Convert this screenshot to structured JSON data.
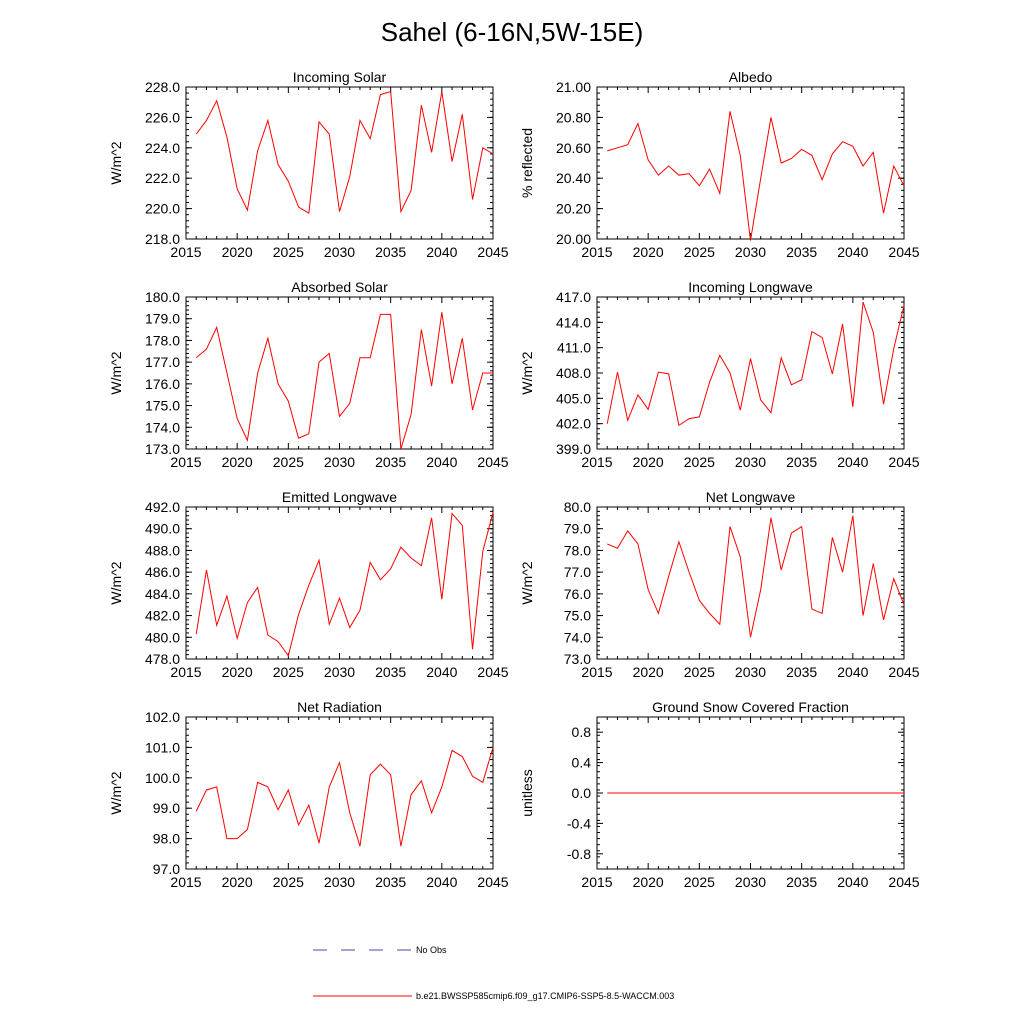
{
  "figure_title": "Sahel (6-16N,5W-15E)",
  "chart_data": [
    {
      "type": "line",
      "title": "Incoming Solar",
      "ylabel": "W/m^2",
      "xlim": [
        2015,
        2045
      ],
      "ylim": [
        218,
        228
      ],
      "xticks": [
        2015,
        2020,
        2025,
        2030,
        2035,
        2040,
        2045
      ],
      "yticks": [
        218.0,
        220.0,
        222.0,
        224.0,
        226.0,
        228.0
      ],
      "ytick_labels": [
        "218.0",
        "220.0",
        "222.0",
        "224.0",
        "226.0",
        "228.0"
      ],
      "x": [
        2016,
        2017,
        2018,
        2019,
        2020,
        2021,
        2022,
        2023,
        2024,
        2025,
        2026,
        2027,
        2028,
        2029,
        2030,
        2031,
        2032,
        2033,
        2034,
        2035,
        2036,
        2037,
        2038,
        2039,
        2040,
        2041,
        2042,
        2043,
        2044,
        2045
      ],
      "values": [
        224.9,
        225.8,
        227.1,
        224.7,
        221.3,
        219.9,
        223.8,
        225.8,
        222.9,
        221.8,
        220.1,
        219.7,
        225.7,
        224.9,
        219.8,
        222.1,
        225.8,
        224.6,
        227.5,
        227.7,
        219.8,
        221.2,
        226.8,
        223.7,
        227.7,
        223.1,
        226.2,
        220.6,
        224.0,
        223.6
      ]
    },
    {
      "type": "line",
      "title": "Albedo",
      "ylabel": "% reflected",
      "xlim": [
        2015,
        2045
      ],
      "ylim": [
        20.0,
        21.0
      ],
      "xticks": [
        2015,
        2020,
        2025,
        2030,
        2035,
        2040,
        2045
      ],
      "yticks": [
        20.0,
        20.2,
        20.4,
        20.6,
        20.8,
        21.0
      ],
      "ytick_labels": [
        "20.00",
        "20.20",
        "20.40",
        "20.60",
        "20.80",
        "21.00"
      ],
      "x": [
        2016,
        2017,
        2018,
        2019,
        2020,
        2021,
        2022,
        2023,
        2024,
        2025,
        2026,
        2027,
        2028,
        2029,
        2030,
        2031,
        2032,
        2033,
        2034,
        2035,
        2036,
        2037,
        2038,
        2039,
        2040,
        2041,
        2042,
        2043,
        2044,
        2045
      ],
      "values": [
        20.58,
        20.6,
        20.62,
        20.76,
        20.52,
        20.42,
        20.48,
        20.42,
        20.43,
        20.35,
        20.46,
        20.3,
        20.84,
        20.55,
        19.99,
        20.4,
        20.8,
        20.5,
        20.53,
        20.59,
        20.55,
        20.39,
        20.56,
        20.64,
        20.61,
        20.48,
        20.57,
        20.17,
        20.48,
        20.35
      ]
    },
    {
      "type": "line",
      "title": "Absorbed Solar",
      "ylabel": "W/m^2",
      "xlim": [
        2015,
        2045
      ],
      "ylim": [
        173,
        180
      ],
      "xticks": [
        2015,
        2020,
        2025,
        2030,
        2035,
        2040,
        2045
      ],
      "yticks": [
        173.0,
        174.0,
        175.0,
        176.0,
        177.0,
        178.0,
        179.0,
        180.0
      ],
      "ytick_labels": [
        "173.0",
        "174.0",
        "175.0",
        "176.0",
        "177.0",
        "178.0",
        "179.0",
        "180.0"
      ],
      "x": [
        2016,
        2017,
        2018,
        2019,
        2020,
        2021,
        2022,
        2023,
        2024,
        2025,
        2026,
        2027,
        2028,
        2029,
        2030,
        2031,
        2032,
        2033,
        2034,
        2035,
        2036,
        2037,
        2038,
        2039,
        2040,
        2041,
        2042,
        2043,
        2044,
        2045
      ],
      "values": [
        177.2,
        177.6,
        178.6,
        176.5,
        174.4,
        173.4,
        176.5,
        178.1,
        176.0,
        175.2,
        173.5,
        173.7,
        177.0,
        177.4,
        174.5,
        175.1,
        177.2,
        177.2,
        179.2,
        179.2,
        173.0,
        174.6,
        178.5,
        175.9,
        179.3,
        176.0,
        178.1,
        174.8,
        176.5,
        176.5
      ]
    },
    {
      "type": "line",
      "title": "Incoming Longwave",
      "ylabel": "W/m^2",
      "xlim": [
        2015,
        2045
      ],
      "ylim": [
        399,
        417
      ],
      "xticks": [
        2015,
        2020,
        2025,
        2030,
        2035,
        2040,
        2045
      ],
      "yticks": [
        399.0,
        402.0,
        405.0,
        408.0,
        411.0,
        414.0,
        417.0
      ],
      "ytick_labels": [
        "399.0",
        "402.0",
        "405.0",
        "408.0",
        "411.0",
        "414.0",
        "417.0"
      ],
      "x": [
        2016,
        2017,
        2018,
        2019,
        2020,
        2021,
        2022,
        2023,
        2024,
        2025,
        2026,
        2027,
        2028,
        2029,
        2030,
        2031,
        2032,
        2033,
        2034,
        2035,
        2036,
        2037,
        2038,
        2039,
        2040,
        2041,
        2042,
        2043,
        2044,
        2045
      ],
      "values": [
        402.0,
        408.1,
        402.4,
        405.4,
        403.7,
        408.1,
        407.9,
        401.8,
        402.6,
        402.8,
        406.9,
        410.1,
        408.0,
        403.6,
        409.7,
        404.8,
        403.3,
        409.8,
        406.6,
        407.2,
        412.9,
        412.2,
        407.9,
        413.8,
        404.0,
        416.4,
        412.8,
        404.3,
        410.9,
        416.0
      ]
    },
    {
      "type": "line",
      "title": "Emitted Longwave",
      "ylabel": "W/m^2",
      "xlim": [
        2015,
        2045
      ],
      "ylim": [
        478,
        492
      ],
      "xticks": [
        2015,
        2020,
        2025,
        2030,
        2035,
        2040,
        2045
      ],
      "yticks": [
        478.0,
        480.0,
        482.0,
        484.0,
        486.0,
        488.0,
        490.0,
        492.0
      ],
      "ytick_labels": [
        "478.0",
        "480.0",
        "482.0",
        "484.0",
        "486.0",
        "488.0",
        "490.0",
        "492.0"
      ],
      "x": [
        2016,
        2017,
        2018,
        2019,
        2020,
        2021,
        2022,
        2023,
        2024,
        2025,
        2026,
        2027,
        2028,
        2029,
        2030,
        2031,
        2032,
        2033,
        2034,
        2035,
        2036,
        2037,
        2038,
        2039,
        2040,
        2041,
        2042,
        2043,
        2044,
        2045
      ],
      "values": [
        480.3,
        486.2,
        481.1,
        483.8,
        479.9,
        483.2,
        484.6,
        480.2,
        479.6,
        478.3,
        482.1,
        484.8,
        487.1,
        481.2,
        483.6,
        480.9,
        482.5,
        486.9,
        485.3,
        486.3,
        488.3,
        487.3,
        486.6,
        491.0,
        483.5,
        491.4,
        490.3,
        478.9,
        487.9,
        491.5
      ]
    },
    {
      "type": "line",
      "title": "Net Longwave",
      "ylabel": "W/m^2",
      "xlim": [
        2015,
        2045
      ],
      "ylim": [
        73,
        80
      ],
      "xticks": [
        2015,
        2020,
        2025,
        2030,
        2035,
        2040,
        2045
      ],
      "yticks": [
        73.0,
        74.0,
        75.0,
        76.0,
        77.0,
        78.0,
        79.0,
        80.0
      ],
      "ytick_labels": [
        "73.0",
        "74.0",
        "75.0",
        "76.0",
        "77.0",
        "78.0",
        "79.0",
        "80.0"
      ],
      "x": [
        2016,
        2017,
        2018,
        2019,
        2020,
        2021,
        2022,
        2023,
        2024,
        2025,
        2026,
        2027,
        2028,
        2029,
        2030,
        2031,
        2032,
        2033,
        2034,
        2035,
        2036,
        2037,
        2038,
        2039,
        2040,
        2041,
        2042,
        2043,
        2044,
        2045
      ],
      "values": [
        78.3,
        78.1,
        78.9,
        78.3,
        76.2,
        75.1,
        76.8,
        78.4,
        77.0,
        75.7,
        75.1,
        74.6,
        79.1,
        77.7,
        74.0,
        76.2,
        79.5,
        77.1,
        78.8,
        79.1,
        75.3,
        75.1,
        78.6,
        77.0,
        79.6,
        75.0,
        77.4,
        74.8,
        76.7,
        75.5
      ]
    },
    {
      "type": "line",
      "title": "Net Radiation",
      "ylabel": "W/m^2",
      "xlim": [
        2015,
        2045
      ],
      "ylim": [
        97,
        102
      ],
      "xticks": [
        2015,
        2020,
        2025,
        2030,
        2035,
        2040,
        2045
      ],
      "yticks": [
        97.0,
        98.0,
        99.0,
        100.0,
        101.0,
        102.0
      ],
      "ytick_labels": [
        "97.0",
        "98.0",
        "99.0",
        "100.0",
        "101.0",
        "102.0"
      ],
      "x": [
        2016,
        2017,
        2018,
        2019,
        2020,
        2021,
        2022,
        2023,
        2024,
        2025,
        2026,
        2027,
        2028,
        2029,
        2030,
        2031,
        2032,
        2033,
        2034,
        2035,
        2036,
        2037,
        2038,
        2039,
        2040,
        2041,
        2042,
        2043,
        2044,
        2045
      ],
      "values": [
        98.9,
        99.6,
        99.7,
        98.0,
        98.0,
        98.3,
        99.85,
        99.7,
        98.95,
        99.6,
        98.45,
        99.1,
        97.85,
        99.7,
        100.5,
        98.85,
        97.75,
        100.1,
        100.45,
        100.1,
        97.75,
        99.45,
        99.9,
        98.85,
        99.7,
        100.9,
        100.7,
        100.05,
        99.85,
        101.0
      ]
    },
    {
      "type": "line",
      "title": "Ground Snow Covered Fraction",
      "ylabel": "unitless",
      "xlim": [
        2015,
        2045
      ],
      "ylim": [
        -1.0,
        1.0
      ],
      "xticks": [
        2015,
        2020,
        2025,
        2030,
        2035,
        2040,
        2045
      ],
      "yticks": [
        -0.8,
        -0.4,
        0.0,
        0.4,
        0.8
      ],
      "ytick_labels": [
        "-0.8",
        "-0.4",
        "0.0",
        "0.4",
        "0.8"
      ],
      "x": [
        2016,
        2017,
        2018,
        2019,
        2020,
        2021,
        2022,
        2023,
        2024,
        2025,
        2026,
        2027,
        2028,
        2029,
        2030,
        2031,
        2032,
        2033,
        2034,
        2035,
        2036,
        2037,
        2038,
        2039,
        2040,
        2041,
        2042,
        2043,
        2044,
        2045
      ],
      "values": [
        0,
        0,
        0,
        0,
        0,
        0,
        0,
        0,
        0,
        0,
        0,
        0,
        0,
        0,
        0,
        0,
        0,
        0,
        0,
        0,
        0,
        0,
        0,
        0,
        0,
        0,
        0,
        0,
        0,
        0
      ]
    }
  ],
  "legend": [
    {
      "label": "No Obs",
      "color": "#4a4aa8",
      "style": "dashed"
    },
    {
      "label": "b.e21.BWSSP585cmip6.f09_g17.CMIP6-SSP5-8.5-WACCM.003",
      "color": "#ff0000",
      "style": "solid"
    }
  ],
  "series_color": "#ff0000"
}
